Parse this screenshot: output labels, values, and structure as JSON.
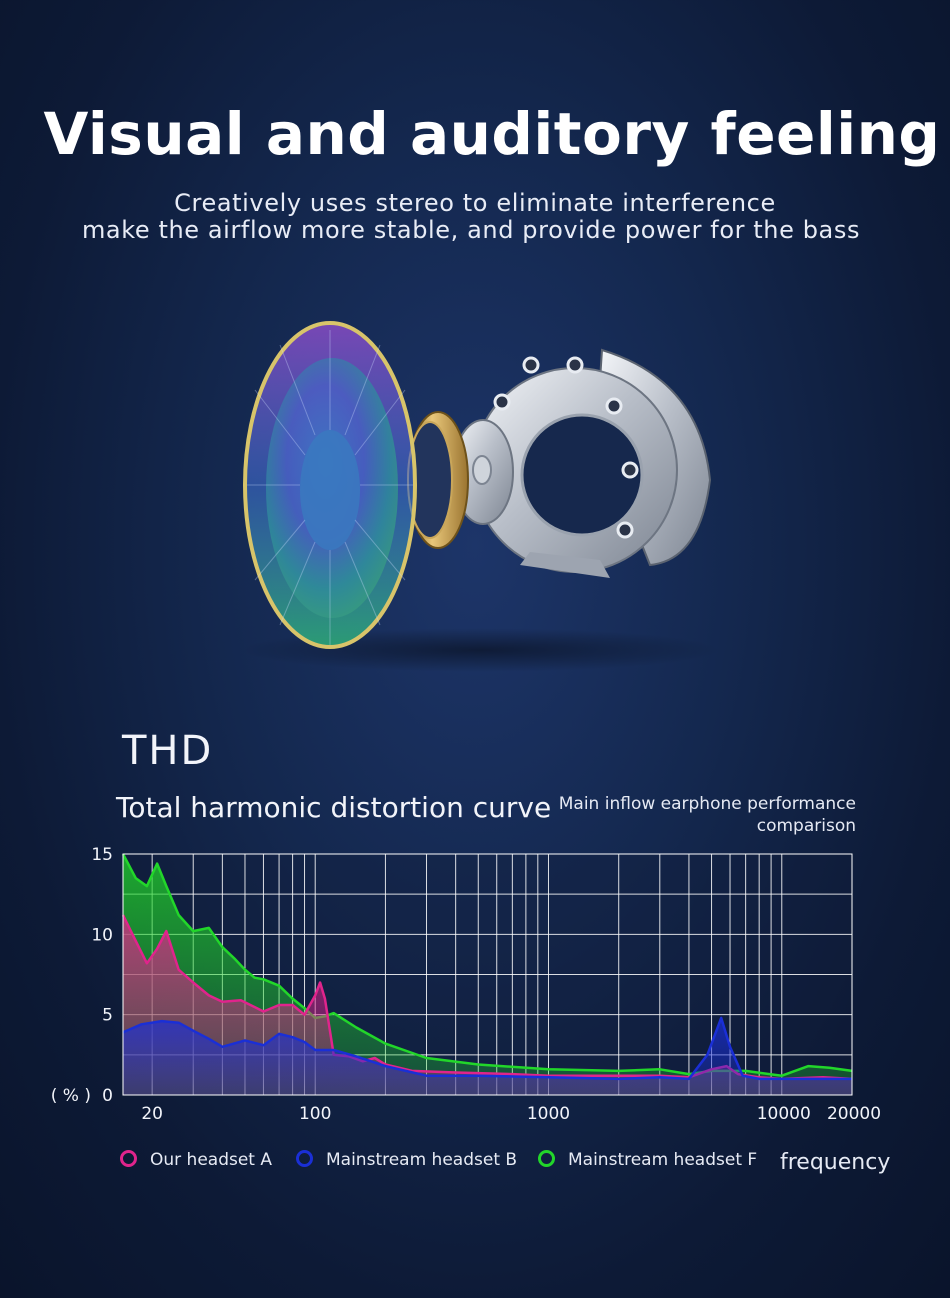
{
  "header": {
    "title": "Visual and auditory feeling",
    "subtitle_line1": "Creatively uses stereo to eliminate interference",
    "subtitle_line2": "make the airflow more stable, and provide power for the bass"
  },
  "section_label": "THD",
  "colors": {
    "background": "#14284f",
    "series_a": "#e0248c",
    "series_b": "#1a2fd6",
    "series_f": "#22d62a",
    "grid": "#ffffff"
  },
  "chart_data": {
    "type": "area",
    "title": "Total harmonic distortion curve",
    "subtitle": "Main inflow earphone performance comparison",
    "xlabel": "frequency",
    "ylabel": "( % )",
    "x_scale": "log",
    "xlim": [
      15,
      20000
    ],
    "ylim": [
      0,
      15
    ],
    "x_tick_labels": [
      {
        "value": 20,
        "label": "20"
      },
      {
        "value": 100,
        "label": "100"
      },
      {
        "value": 1000,
        "label": "1000"
      },
      {
        "value": 10000,
        "label": "10000"
      },
      {
        "value": 20000,
        "label": "20000"
      }
    ],
    "y_tick_labels": [
      {
        "value": 0,
        "label": "0"
      },
      {
        "value": 5,
        "label": "5"
      },
      {
        "value": 10,
        "label": "10"
      },
      {
        "value": 15,
        "label": "15"
      }
    ],
    "legend_position": "bottom",
    "series": [
      {
        "name": "Our headset A",
        "color": "#e0248c",
        "x": [
          15,
          17,
          19,
          21,
          23,
          26,
          30,
          35,
          40,
          48,
          60,
          70,
          80,
          90,
          100,
          105,
          110,
          120,
          140,
          160,
          180,
          200,
          260,
          400,
          700,
          1000,
          2000,
          3000,
          4000,
          5000,
          5800,
          6500,
          8000,
          10000,
          15000,
          20000
        ],
        "y": [
          11.2,
          9.6,
          8.2,
          9.1,
          10.2,
          7.8,
          7.0,
          6.2,
          5.8,
          5.9,
          5.2,
          5.6,
          5.6,
          5.0,
          6.2,
          7.0,
          6.0,
          2.5,
          2.4,
          2.1,
          2.3,
          1.9,
          1.5,
          1.4,
          1.3,
          1.2,
          1.2,
          1.2,
          1.1,
          1.6,
          1.8,
          1.3,
          1.1,
          1.0,
          1.1,
          1.0
        ]
      },
      {
        "name": "Mainstream headset B",
        "color": "#1a2fd6",
        "x": [
          15,
          18,
          22,
          26,
          30,
          35,
          40,
          50,
          60,
          70,
          80,
          90,
          100,
          120,
          150,
          200,
          300,
          500,
          1000,
          2000,
          3000,
          4000,
          4800,
          5500,
          6000,
          6800,
          8000,
          10000,
          15000,
          20000
        ],
        "y": [
          3.9,
          4.4,
          4.6,
          4.5,
          4.0,
          3.5,
          3.0,
          3.4,
          3.1,
          3.8,
          3.6,
          3.3,
          2.8,
          2.8,
          2.4,
          1.8,
          1.2,
          1.2,
          1.1,
          1.0,
          1.1,
          1.0,
          2.5,
          4.8,
          3.0,
          1.2,
          1.0,
          1.0,
          1.0,
          1.0
        ]
      },
      {
        "name": "Mainstream headset F",
        "color": "#22d62a",
        "x": [
          15,
          17,
          19,
          21,
          23,
          26,
          30,
          35,
          40,
          45,
          50,
          55,
          60,
          70,
          80,
          90,
          100,
          110,
          120,
          150,
          200,
          300,
          500,
          1000,
          2000,
          3000,
          4000,
          5000,
          7000,
          10000,
          13000,
          16000,
          20000
        ],
        "y": [
          15.0,
          13.5,
          13.0,
          14.4,
          13.0,
          11.2,
          10.2,
          10.4,
          9.2,
          8.5,
          7.8,
          7.3,
          7.2,
          6.8,
          6.0,
          5.4,
          4.8,
          4.9,
          5.1,
          4.2,
          3.2,
          2.3,
          1.9,
          1.6,
          1.5,
          1.6,
          1.3,
          1.5,
          1.5,
          1.2,
          1.8,
          1.7,
          1.5
        ]
      }
    ]
  }
}
